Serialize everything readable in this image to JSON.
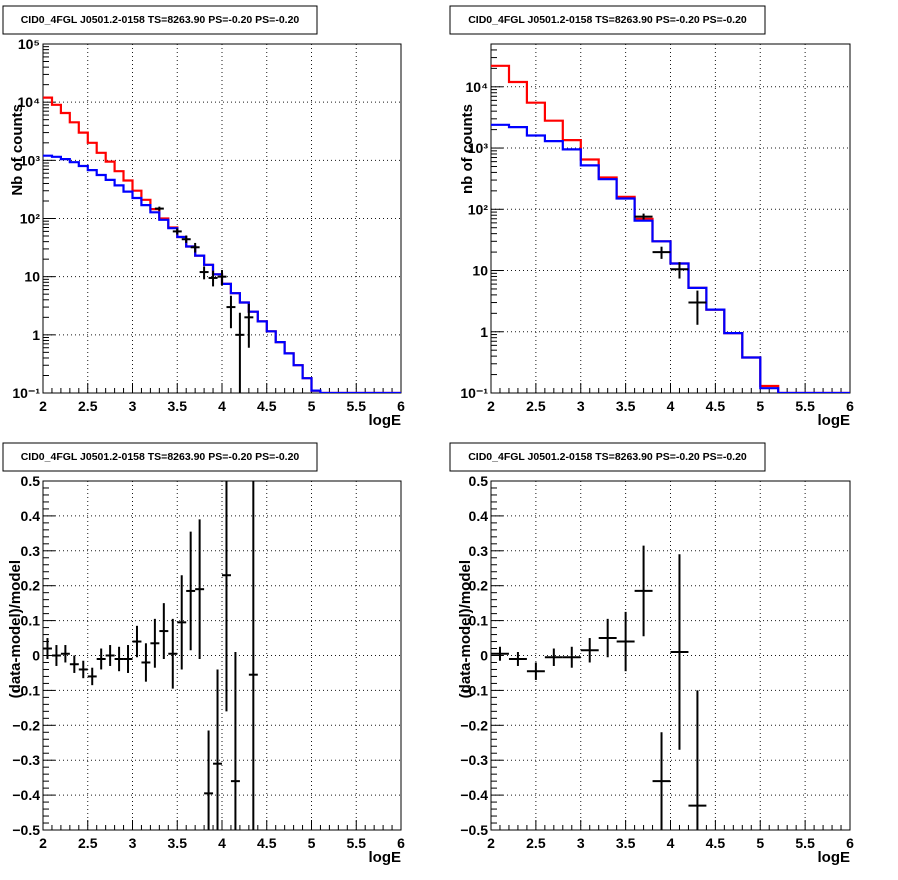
{
  "chart_data": [
    {
      "type": "line",
      "title": "CID0_4FGL J0501.2-0158 TS=8263.90 PS=-0.20 PS=-0.20",
      "xlabel": "logE",
      "ylabel": "Nb of counts",
      "xlim": [
        2,
        6
      ],
      "ylim": [
        0.1,
        100000
      ],
      "yscale": "log",
      "grid": true,
      "x_ticks": [
        "2",
        "2.5",
        "3",
        "3.5",
        "4",
        "4.5",
        "5",
        "5.5",
        "6"
      ],
      "y_ticks": [
        "10⁻¹",
        "1",
        "10",
        "10²",
        "10³",
        "10⁴",
        "10⁵"
      ],
      "bin_edges": [
        2.0,
        2.1,
        2.2,
        2.3,
        2.4,
        2.5,
        2.6,
        2.7,
        2.8,
        2.9,
        3.0,
        3.1,
        3.2,
        3.3,
        3.4,
        3.5,
        3.6,
        3.7,
        3.8,
        3.9,
        4.0,
        4.1,
        4.2,
        4.3,
        4.4,
        4.5,
        4.6,
        4.7,
        4.8,
        4.9,
        5.0,
        5.1,
        5.2,
        5.3,
        5.4,
        5.5,
        5.6,
        5.7,
        5.8,
        5.9,
        6.0
      ],
      "series": [
        {
          "color": "#ff0000",
          "values": [
            12000,
            9000,
            6500,
            4500,
            3000,
            2000,
            1350,
            950,
            650,
            450,
            300,
            210,
            145,
            100,
            70,
            48,
            33,
            23,
            16,
            11,
            7.5,
            5.2,
            3.6,
            2.5,
            1.7,
            1.15,
            0.75,
            0.48,
            0.3,
            0.18,
            0.11,
            0.1,
            0.1,
            0.1,
            0.1,
            0.1,
            0.1,
            0.1,
            0.1,
            0.1
          ]
        },
        {
          "color": "#0000ff",
          "values": [
            1200,
            1150,
            1050,
            930,
            800,
            680,
            560,
            460,
            370,
            290,
            225,
            170,
            128,
            95,
            68,
            48,
            33,
            23,
            16,
            11,
            7.5,
            5.2,
            3.6,
            2.5,
            1.7,
            1.15,
            0.75,
            0.48,
            0.3,
            0.18,
            0.11,
            0.1,
            0.1,
            0.1,
            0.1,
            0.1,
            0.1,
            0.1,
            0.1,
            0.1
          ]
        }
      ],
      "data_points": [
        {
          "x": 3.3,
          "y": 148,
          "ylo": 136,
          "yhi": 160
        },
        {
          "x": 3.5,
          "y": 60,
          "ylo": 53,
          "yhi": 68
        },
        {
          "x": 3.6,
          "y": 44,
          "ylo": 38,
          "yhi": 51
        },
        {
          "x": 3.7,
          "y": 32,
          "ylo": 26,
          "yhi": 38
        },
        {
          "x": 3.8,
          "y": 12,
          "ylo": 9,
          "yhi": 15
        },
        {
          "x": 3.9,
          "y": 9.5,
          "ylo": 6.8,
          "yhi": 12.7
        },
        {
          "x": 4.0,
          "y": 10,
          "ylo": 7,
          "yhi": 13
        },
        {
          "x": 4.1,
          "y": 3,
          "ylo": 1.3,
          "yhi": 4.7
        },
        {
          "x": 4.2,
          "y": 1,
          "ylo": 0.1,
          "yhi": 2.4
        },
        {
          "x": 4.3,
          "y": 2,
          "ylo": 0.6,
          "yhi": 3.4
        }
      ]
    },
    {
      "type": "line",
      "title": "CID0_4FGL J0501.2-0158 TS=8263.90 PS=-0.20 PS=-0.20",
      "xlabel": "logE",
      "ylabel": "nb of counts",
      "xlim": [
        2,
        6
      ],
      "ylim": [
        0.1,
        50000
      ],
      "yscale": "log",
      "grid": true,
      "x_ticks": [
        "2",
        "2.5",
        "3",
        "3.5",
        "4",
        "4.5",
        "5",
        "5.5",
        "6"
      ],
      "y_ticks": [
        "10⁻¹",
        "1",
        "10",
        "10²",
        "10³",
        "10⁴"
      ],
      "bin_edges": [
        2.0,
        2.2,
        2.4,
        2.6,
        2.8,
        3.0,
        3.2,
        3.4,
        3.6,
        3.8,
        4.0,
        4.2,
        4.4,
        4.6,
        4.8,
        5.0,
        5.2,
        5.4,
        5.6,
        5.8,
        6.0
      ],
      "series": [
        {
          "color": "#ff0000",
          "values": [
            22000,
            12000,
            5500,
            2800,
            1350,
            650,
            330,
            160,
            70,
            30,
            13,
            5.2,
            2.3,
            0.95,
            0.38,
            0.13,
            0.1,
            0.1,
            0.1,
            0.1
          ]
        },
        {
          "color": "#0000ff",
          "values": [
            2400,
            2200,
            1600,
            1300,
            950,
            520,
            310,
            150,
            65,
            30,
            13,
            5.2,
            2.3,
            0.95,
            0.38,
            0.12,
            0.1,
            0.1,
            0.1,
            0.1
          ]
        }
      ],
      "data_points": [
        {
          "x": 3.7,
          "y": 76,
          "ylo": 68,
          "yhi": 85
        },
        {
          "x": 3.9,
          "y": 20,
          "ylo": 15.5,
          "yhi": 24.5
        },
        {
          "x": 4.1,
          "y": 10.5,
          "ylo": 7.4,
          "yhi": 13.7
        },
        {
          "x": 4.3,
          "y": 3,
          "ylo": 1.3,
          "yhi": 4.7
        }
      ]
    },
    {
      "type": "scatter",
      "title": "CID0_4FGL J0501.2-0158 TS=8263.90 PS=-0.20 PS=-0.20",
      "xlabel": "logE",
      "ylabel": "(data-model)/model",
      "xlim": [
        2,
        6
      ],
      "ylim": [
        -0.5,
        0.5
      ],
      "grid": true,
      "x_ticks": [
        "2",
        "2.5",
        "3",
        "3.5",
        "4",
        "4.5",
        "5",
        "5.5",
        "6"
      ],
      "y_ticks": [
        "−0.5",
        "−0.4",
        "−0.3",
        "−0.2",
        "−0.1",
        "0",
        "0.1",
        "0.2",
        "0.3",
        "0.4",
        "0.5"
      ],
      "y_tick_values": [
        -0.5,
        -0.4,
        -0.3,
        -0.2,
        -0.1,
        0,
        0.1,
        0.2,
        0.3,
        0.4,
        0.5
      ],
      "bin_width": 0.1,
      "points": [
        {
          "x": 2.05,
          "y": 0.02,
          "err": 0.03
        },
        {
          "x": 2.15,
          "y": 0.0,
          "err": 0.03
        },
        {
          "x": 2.25,
          "y": 0.005,
          "err": 0.025
        },
        {
          "x": 2.35,
          "y": -0.025,
          "err": 0.025
        },
        {
          "x": 2.45,
          "y": -0.04,
          "err": 0.025
        },
        {
          "x": 2.55,
          "y": -0.06,
          "err": 0.025
        },
        {
          "x": 2.65,
          "y": -0.01,
          "err": 0.03
        },
        {
          "x": 2.75,
          "y": 0.0,
          "err": 0.03
        },
        {
          "x": 2.85,
          "y": -0.01,
          "err": 0.035
        },
        {
          "x": 2.95,
          "y": -0.01,
          "err": 0.04
        },
        {
          "x": 3.05,
          "y": 0.04,
          "err": 0.045
        },
        {
          "x": 3.15,
          "y": -0.02,
          "err": 0.055
        },
        {
          "x": 3.25,
          "y": 0.035,
          "err": 0.07
        },
        {
          "x": 3.35,
          "y": 0.07,
          "err": 0.08
        },
        {
          "x": 3.45,
          "y": 0.005,
          "err": 0.1
        },
        {
          "x": 3.55,
          "y": 0.095,
          "err": 0.135
        },
        {
          "x": 3.65,
          "y": 0.185,
          "err": 0.17
        },
        {
          "x": 3.75,
          "y": 0.19,
          "err": 0.2
        },
        {
          "x": 3.85,
          "y": -0.395,
          "err": 0.18
        },
        {
          "x": 3.95,
          "y": -0.31,
          "err": 0.27
        },
        {
          "x": 4.05,
          "y": 0.23,
          "err": 0.39
        },
        {
          "x": 4.15,
          "y": -0.36,
          "err": 0.37
        },
        {
          "x": 4.35,
          "y": -0.055,
          "err": 0.7
        }
      ]
    },
    {
      "type": "scatter",
      "title": "CID0_4FGL J0501.2-0158 TS=8263.90 PS=-0.20 PS=-0.20",
      "xlabel": "logE",
      "ylabel": "(data-model)/model",
      "xlim": [
        2,
        6
      ],
      "ylim": [
        -0.5,
        0.5
      ],
      "grid": true,
      "x_ticks": [
        "2",
        "2.5",
        "3",
        "3.5",
        "4",
        "4.5",
        "5",
        "5.5",
        "6"
      ],
      "y_ticks": [
        "−0.5",
        "−0.4",
        "−0.3",
        "−0.2",
        "−0.1",
        "0",
        "0.1",
        "0.2",
        "0.3",
        "0.4",
        "0.5"
      ],
      "y_tick_values": [
        -0.5,
        -0.4,
        -0.3,
        -0.2,
        -0.1,
        0,
        0.1,
        0.2,
        0.3,
        0.4,
        0.5
      ],
      "bin_width": 0.2,
      "points": [
        {
          "x": 2.1,
          "y": 0.005,
          "err": 0.02
        },
        {
          "x": 2.3,
          "y": -0.01,
          "err": 0.02
        },
        {
          "x": 2.5,
          "y": -0.045,
          "err": 0.025
        },
        {
          "x": 2.7,
          "y": -0.005,
          "err": 0.025
        },
        {
          "x": 2.9,
          "y": -0.005,
          "err": 0.03
        },
        {
          "x": 3.1,
          "y": 0.015,
          "err": 0.035
        },
        {
          "x": 3.3,
          "y": 0.05,
          "err": 0.055
        },
        {
          "x": 3.5,
          "y": 0.04,
          "err": 0.085
        },
        {
          "x": 3.7,
          "y": 0.185,
          "err": 0.13
        },
        {
          "x": 3.9,
          "y": -0.36,
          "err": 0.14
        },
        {
          "x": 4.1,
          "y": 0.01,
          "err": 0.28
        },
        {
          "x": 4.3,
          "y": -0.43,
          "err": 0.33
        }
      ]
    }
  ]
}
